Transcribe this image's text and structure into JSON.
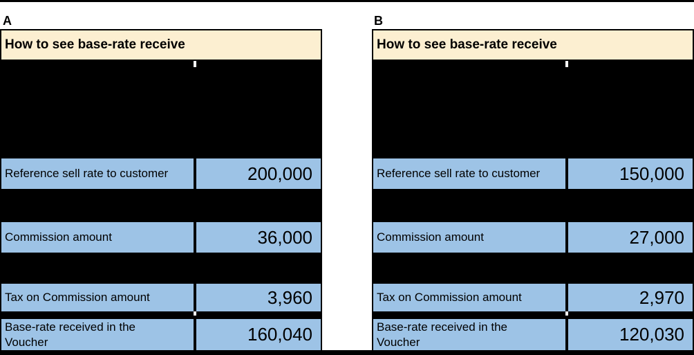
{
  "colors": {
    "header_bg": "#FCEFD1",
    "cell_bg": "#9DC3E6",
    "redaction": "#000000",
    "page_bg": "#FFFFFF",
    "text": "#000000"
  },
  "tables": [
    {
      "name": "A",
      "header": "How to see base-rate receive",
      "rows": [
        {
          "label": "Reference sell rate to customer",
          "value": "200,000"
        },
        {
          "label": "Commission amount",
          "value": "36,000"
        },
        {
          "label": "Tax on Commission amount",
          "value": "3,960"
        },
        {
          "label": "Base-rate received in the Voucher",
          "value": "160,040"
        }
      ]
    },
    {
      "name": "B",
      "header": "How to see base-rate receive",
      "rows": [
        {
          "label": "Reference sell rate to customer",
          "value": "150,000"
        },
        {
          "label": "Commission amount",
          "value": "27,000"
        },
        {
          "label": "Tax on Commission amount",
          "value": "2,970"
        },
        {
          "label": "Base-rate received in the Voucher",
          "value": "120,030"
        }
      ]
    }
  ]
}
